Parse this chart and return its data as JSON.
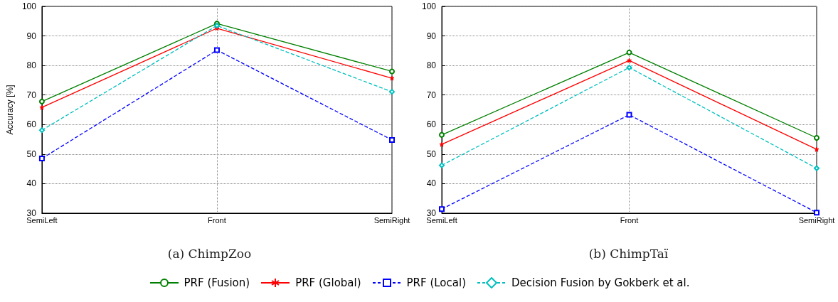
{
  "chart_data": [
    {
      "type": "line",
      "title": "(a) ChimpZoo",
      "ylabel": "Accuracy [%]",
      "categories": [
        "SemiLeft",
        "Front",
        "SemiRight"
      ],
      "ylim": [
        30,
        100
      ],
      "yticks": [
        30,
        40,
        50,
        60,
        70,
        80,
        90,
        100
      ],
      "grid": true,
      "legend": "bottom",
      "series": [
        {
          "name": "PRF (Fusion)",
          "color": "#008000",
          "marker": "circle",
          "line_style": "solid",
          "values": [
            67.8,
            94.2,
            78.0
          ]
        },
        {
          "name": "PRF (Global)",
          "color": "#ff0000",
          "marker": "star",
          "line_style": "solid",
          "values": [
            65.8,
            92.6,
            75.7
          ]
        },
        {
          "name": "PRF (Local)",
          "color": "#0000ff",
          "marker": "square",
          "line_style": "dashed",
          "values": [
            48.5,
            85.2,
            54.8
          ]
        },
        {
          "name": "Decision Fusion by Gokberk et al.",
          "color": "#00bfbf",
          "marker": "diamond",
          "line_style": "dashed",
          "values": [
            58.1,
            93.5,
            71.1
          ]
        }
      ]
    },
    {
      "type": "line",
      "title": "(b) ChimpTaï",
      "categories": [
        "SemiLeft",
        "Front",
        "SemiRight"
      ],
      "ylim": [
        30,
        100
      ],
      "yticks": [
        30,
        40,
        50,
        60,
        70,
        80,
        90,
        100
      ],
      "grid": true,
      "legend": "bottom",
      "series": [
        {
          "name": "PRF (Fusion)",
          "color": "#008000",
          "marker": "circle",
          "line_style": "solid",
          "values": [
            56.5,
            84.4,
            55.5
          ]
        },
        {
          "name": "PRF (Global)",
          "color": "#ff0000",
          "marker": "star",
          "line_style": "solid",
          "values": [
            53.3,
            81.7,
            51.6
          ]
        },
        {
          "name": "PRF (Local)",
          "color": "#0000ff",
          "marker": "square",
          "line_style": "dashed",
          "values": [
            31.4,
            63.3,
            30.2
          ]
        },
        {
          "name": "Decision Fusion by Gokberk et al.",
          "color": "#00bfbf",
          "marker": "diamond",
          "line_style": "dashed",
          "values": [
            46.2,
            79.3,
            45.2
          ]
        }
      ]
    }
  ]
}
